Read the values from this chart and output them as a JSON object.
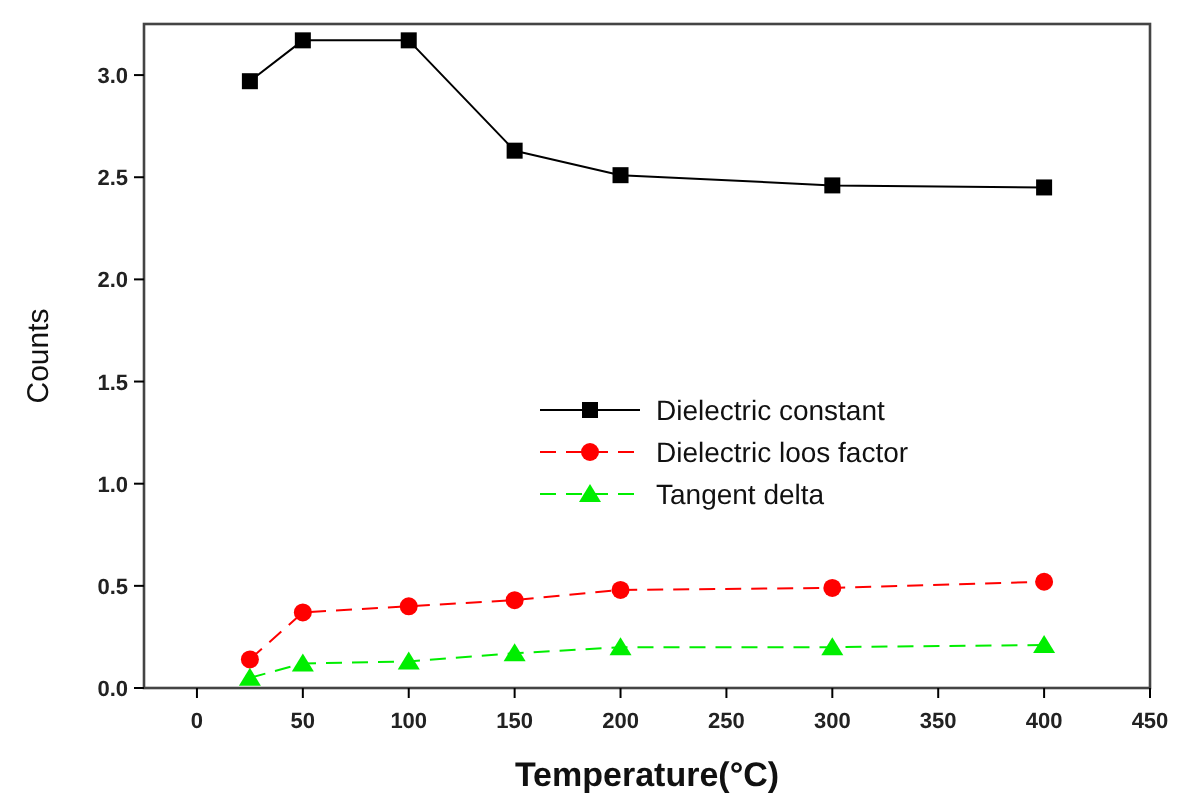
{
  "chart_data": {
    "type": "line",
    "xlabel": "Temperature(°C)",
    "ylabel": "Counts",
    "x": [
      25,
      50,
      100,
      150,
      200,
      300,
      400
    ],
    "xlim": [
      -25,
      450
    ],
    "xticks": [
      0,
      50,
      100,
      150,
      200,
      250,
      300,
      350,
      400,
      450
    ],
    "ylim": [
      0,
      3.25
    ],
    "yticks": [
      {
        "value": 0,
        "label": "0.0"
      },
      {
        "value": 0.5,
        "label": "0.5"
      },
      {
        "value": 1,
        "label": "1.0"
      },
      {
        "value": 1.5,
        "label": "1.5"
      },
      {
        "value": 2,
        "label": "2.0"
      },
      {
        "value": 2.5,
        "label": "2.5"
      },
      {
        "value": 3,
        "label": "3.0"
      }
    ],
    "grid": false,
    "legend": "right",
    "series": [
      {
        "name": "Dielectric constant",
        "color": "#000000",
        "marker": "square",
        "line_style": "solid",
        "values": [
          2.97,
          3.17,
          3.17,
          2.63,
          2.51,
          2.46,
          2.45
        ]
      },
      {
        "name": "Dielectric loos factor",
        "color": "#ff0000",
        "marker": "circle",
        "line_style": "dashed",
        "values": [
          0.14,
          0.37,
          0.4,
          0.43,
          0.48,
          0.49,
          0.52
        ]
      },
      {
        "name": "Tangent delta",
        "color": "#00ee00",
        "marker": "triangle",
        "line_style": "dashed",
        "values": [
          0.05,
          0.12,
          0.13,
          0.17,
          0.2,
          0.2,
          0.21
        ]
      }
    ]
  }
}
